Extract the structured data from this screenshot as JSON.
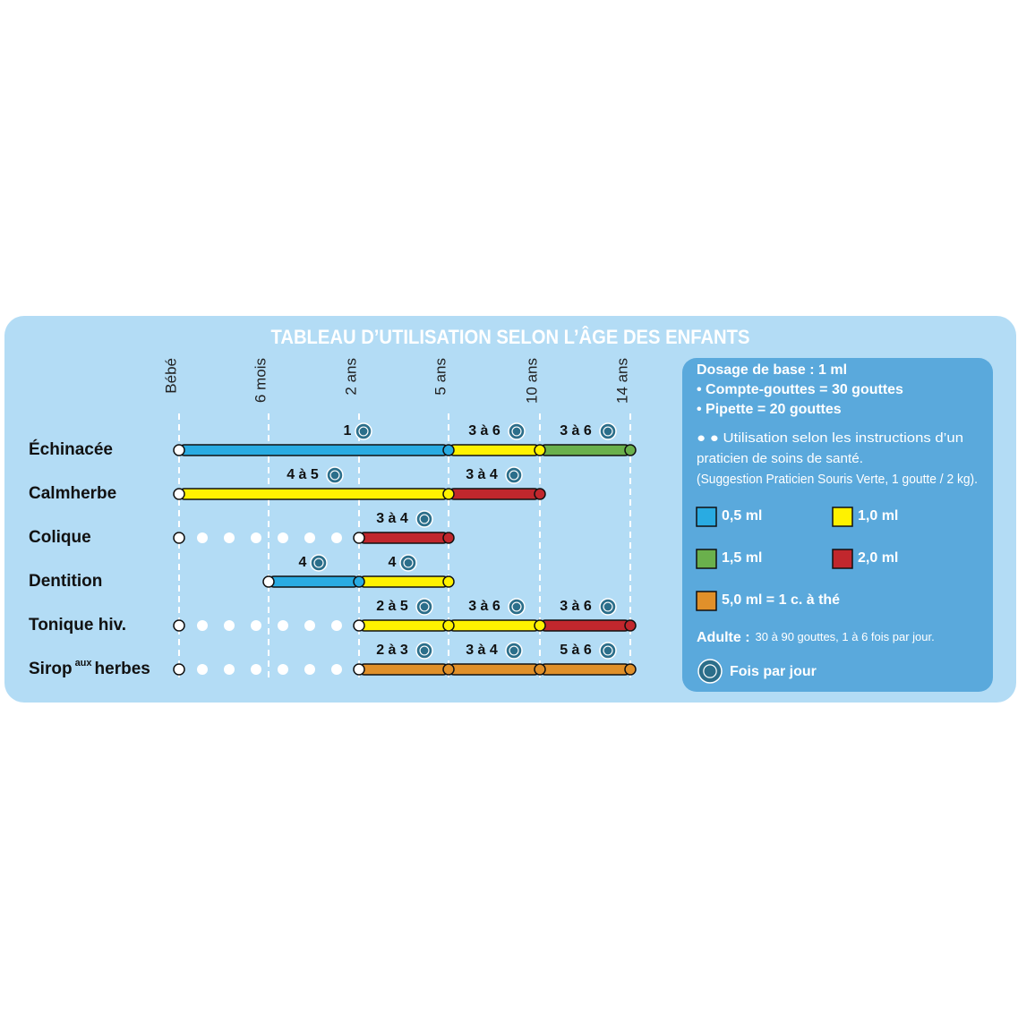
{
  "title": "TABLEAU D’UTILISATION SELON L’ÂGE DES ENFANTS",
  "ages": [
    "Bébé",
    "6 mois",
    "2 ans",
    "5 ans",
    "10 ans",
    "14 ans"
  ],
  "rows": [
    {
      "label": "Échinacée",
      "segments": [
        {
          "label": "1",
          "color": "#29abe2"
        },
        {
          "label": "3 à 6",
          "color": "#fff200"
        },
        {
          "label": "3 à 6",
          "color": "#6ab04c"
        }
      ]
    },
    {
      "label": "Calmherbe",
      "segments": [
        {
          "label": "4 à 5",
          "color": "#fff200"
        },
        {
          "label": "3 à 4",
          "color": "#c1272d"
        }
      ]
    },
    {
      "label": "Colique",
      "segments": [
        {
          "label": "3 à 4",
          "color": "#c1272d"
        }
      ]
    },
    {
      "label": "Dentition",
      "segments": [
        {
          "label": "4",
          "color": "#29abe2"
        },
        {
          "label": "4",
          "color": "#fff200"
        }
      ]
    },
    {
      "label": "Tonique hiv.",
      "segments": [
        {
          "label": "2 à 5",
          "color": "#fff200"
        },
        {
          "label": "3 à 6",
          "color": "#fff200"
        },
        {
          "label": "3 à 6",
          "color": "#c1272d"
        }
      ]
    },
    {
      "label": "Sirop",
      "label_sup": "aux",
      "label_end": "herbes",
      "segments": [
        {
          "label": "2 à 3",
          "color": "#e0902a"
        },
        {
          "label": "3 à 4",
          "color": "#e0902a"
        },
        {
          "label": "5 à 6",
          "color": "#e0902a"
        }
      ]
    }
  ],
  "legend": {
    "lines": [
      "Dosage de base : 1 ml",
      "• Compte-gouttes = 30 gouttes",
      "• Pipette = 20 gouttes"
    ],
    "note": [
      "● ● Utilisation selon les instructions d’un",
      "praticien de soins de santé.",
      "(Suggestion Praticien Souris Verte, 1 goutte / 2 kg)."
    ],
    "doses": [
      {
        "label": "0,5 ml",
        "color": "#29abe2"
      },
      {
        "label": "1,0 ml",
        "color": "#fff200"
      },
      {
        "label": "1,5 ml",
        "color": "#6ab04c"
      },
      {
        "label": "2,0 ml",
        "color": "#c1272d"
      },
      {
        "label": "5,0 ml = 1 c. à thé",
        "color": "#e0902a"
      }
    ],
    "adult_label": "Adulte :",
    "adult_text": "30 à 90 gouttes, 1 à 6 fois par jour.",
    "per_day": "Fois par jour"
  }
}
